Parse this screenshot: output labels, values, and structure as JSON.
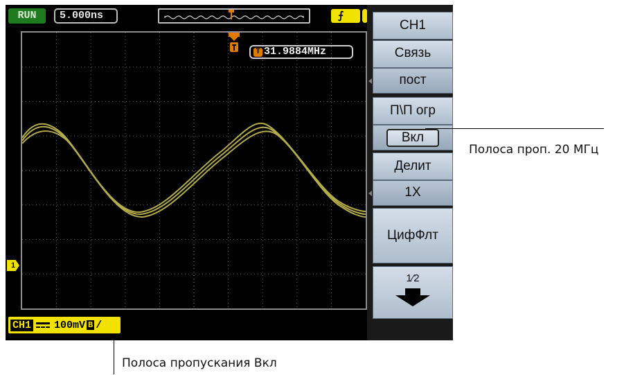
{
  "top": {
    "run_state": "RUN",
    "timebase": "5.000ns"
  },
  "display": {
    "trigger_frequency": "31.9884MHz",
    "channel_marker": "1"
  },
  "status": {
    "channel": "CH1",
    "scale": "100mV",
    "bw_symbol": "B",
    "slash": "/"
  },
  "menu": {
    "title": "CH1",
    "coupling_label": "Связь",
    "coupling_value": "пост",
    "bw_limit_label": "П\\П огр",
    "bw_limit_value": "Вкл",
    "probe_label": "Делит",
    "probe_value": "1X",
    "digital_filter_label": "ЦифФлт",
    "page_indicator": "1⁄2"
  },
  "callouts": {
    "menu_callout": "Полоса проп. 20 МГц",
    "status_callout": "Полоса пропускания Вкл"
  },
  "colors": {
    "waveform": "#b3ac4a",
    "channel_yellow": "#f2e200",
    "run_green": "#1f7a1f",
    "trigger_orange": "#e07a00",
    "menu_blue": "#c6d1dd"
  }
}
